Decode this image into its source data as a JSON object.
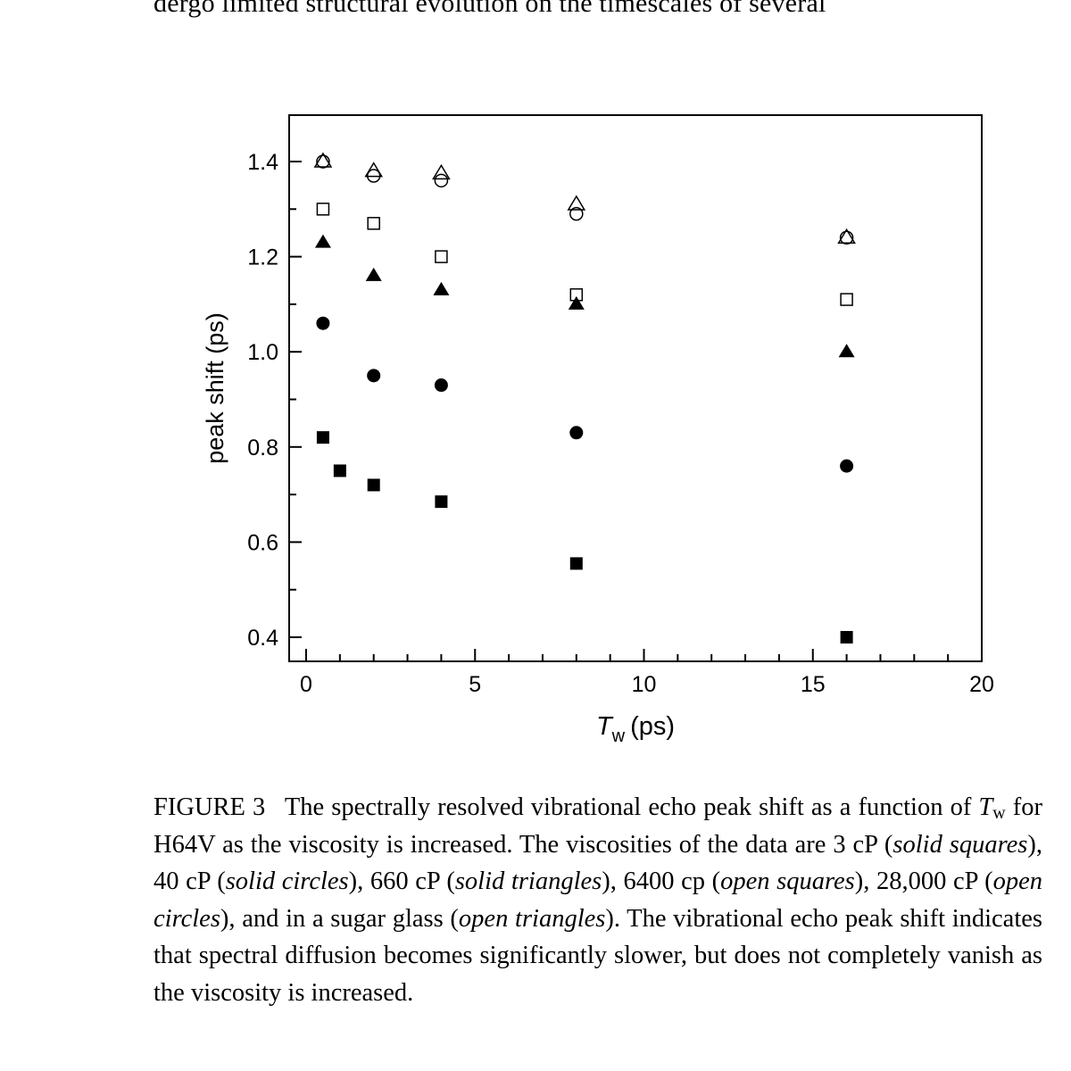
{
  "page": {
    "top_text": "dergo limited structural evolution on the timescales of several"
  },
  "figure": {
    "label": "FIGURE 3",
    "caption_parts": {
      "p1": "The spectrally resolved vibrational echo peak shift as a function of ",
      "tw_T": "T",
      "tw_sub": "w",
      "p2": " for H64V as the viscosity is increased. The viscosities of the data are 3 cP (",
      "s1": "solid squares",
      "p3": "), 40 cP (",
      "s2": "solid circles",
      "p4": "), 660 cP (",
      "s3": "solid triangles",
      "p5": "), 6400 cp (",
      "s4": "open squares",
      "p6": "), 28,000 cP (",
      "s5": "open circles",
      "p7": "), and in a sugar glass (",
      "s6": "open triangles",
      "p8": "). The vibrational echo peak shift indicates that spectral diffusion becomes significantly slower, but does not completely vanish as the viscosity is increased."
    }
  },
  "chart_data": {
    "type": "scatter",
    "title": "",
    "xlabel": "T_w (ps)",
    "xlabel_main": "T",
    "xlabel_sub": "w",
    "xlabel_unit": "(ps)",
    "ylabel": "peak shift (ps)",
    "xlim": [
      -0.5,
      20
    ],
    "ylim": [
      0.35,
      1.5
    ],
    "x_ticks": [
      0,
      5,
      10,
      15,
      20
    ],
    "x_tick_labels": [
      "0",
      "5",
      "10",
      "15",
      "20"
    ],
    "y_ticks": [
      0.4,
      0.6,
      0.8,
      1.0,
      1.2,
      1.4
    ],
    "y_tick_labels": [
      "0.4",
      "0.6",
      "0.8",
      "1.0",
      "1.2",
      "1.4"
    ],
    "grid": false,
    "legend": "none (described in caption)",
    "series": [
      {
        "name": "3 cP (solid squares)",
        "marker": "square",
        "filled": true,
        "x": [
          0.5,
          1,
          2,
          4,
          8,
          16
        ],
        "y": [
          0.82,
          0.75,
          0.72,
          0.685,
          0.555,
          0.4
        ]
      },
      {
        "name": "40 cP (solid circles)",
        "marker": "circle",
        "filled": true,
        "x": [
          0.5,
          2,
          4,
          8,
          16
        ],
        "y": [
          1.06,
          0.95,
          0.93,
          0.83,
          0.76
        ]
      },
      {
        "name": "660 cP (solid triangles)",
        "marker": "triangle",
        "filled": true,
        "x": [
          0.5,
          2,
          4,
          8,
          16
        ],
        "y": [
          1.23,
          1.16,
          1.13,
          1.1,
          1.0
        ]
      },
      {
        "name": "6400 cp (open squares)",
        "marker": "square",
        "filled": false,
        "x": [
          0.5,
          2,
          4,
          8,
          16
        ],
        "y": [
          1.3,
          1.27,
          1.2,
          1.12,
          1.11
        ]
      },
      {
        "name": "28,000 cP (open circles)",
        "marker": "circle",
        "filled": false,
        "x": [
          0.5,
          2,
          4,
          8,
          16
        ],
        "y": [
          1.4,
          1.37,
          1.36,
          1.29,
          1.24
        ]
      },
      {
        "name": "sugar glass (open triangles)",
        "marker": "triangle",
        "filled": false,
        "x": [
          0.5,
          2,
          4,
          8,
          16
        ],
        "y": [
          1.4,
          1.38,
          1.375,
          1.31,
          1.24
        ]
      }
    ]
  }
}
